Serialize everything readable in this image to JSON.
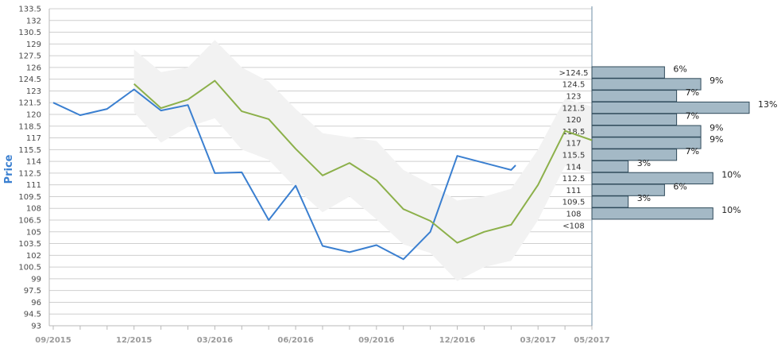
{
  "chart_data": {
    "type": "line",
    "title": "",
    "xlabel": "",
    "ylabel": "Price",
    "ylim": [
      93,
      133.5
    ],
    "y_ticks": [
      93,
      94.5,
      96,
      97.5,
      99,
      100.5,
      102,
      103.5,
      105,
      106.5,
      108,
      109.5,
      111,
      112.5,
      114,
      115.5,
      117,
      118.5,
      120,
      121.5,
      123,
      124.5,
      126,
      127.5,
      129,
      130.5,
      132,
      133.5
    ],
    "y_tick_labels": [
      "93",
      "94.5",
      "96",
      "97.5",
      "99",
      "100.5",
      "102",
      "103.5",
      "105",
      "106.5",
      "108",
      "109.5",
      "111",
      "112.5",
      "114",
      "115.5",
      "117",
      "118.5",
      "120",
      "121.5",
      "123",
      "124.5",
      "126",
      "127.5",
      "129",
      "130.5",
      "132",
      "133.5"
    ],
    "x_month_range": [
      "2015-09",
      "2017-05"
    ],
    "x_tick_labels": [
      {
        "label": "09/2015",
        "month": "2015-09"
      },
      {
        "label": "12/2015",
        "month": "2015-12"
      },
      {
        "label": "03/2016",
        "month": "2016-03"
      },
      {
        "label": "06/2016",
        "month": "2016-06"
      },
      {
        "label": "09/2016",
        "month": "2016-09"
      },
      {
        "label": "12/2016",
        "month": "2016-12"
      },
      {
        "label": "03/2017",
        "month": "2017-03"
      },
      {
        "label": "05/2017",
        "month": "2017-05"
      }
    ],
    "grid": true,
    "series": [
      {
        "color": "#3a7fd0",
        "points": [
          [
            "2015-09",
            121.5
          ],
          [
            "2015-10",
            119.9
          ],
          [
            "2015-11",
            120.7
          ],
          [
            "2015-12",
            123.2
          ],
          [
            "2016-01",
            120.5
          ],
          [
            "2016-02",
            121.2
          ],
          [
            "2016-03",
            112.5
          ],
          [
            "2016-04",
            112.6
          ],
          [
            "2016-05",
            106.5
          ],
          [
            "2016-06",
            110.9
          ],
          [
            "2016-07",
            103.2
          ],
          [
            "2016-08",
            102.4
          ],
          [
            "2016-09",
            103.3
          ],
          [
            "2016-10",
            101.5
          ],
          [
            "2016-11",
            105.0
          ],
          [
            "2016-12",
            114.7
          ],
          [
            "2017-02",
            112.9
          ],
          [
            "2017-02-05",
            113.5
          ]
        ]
      },
      {
        "color": "#8cb04a",
        "points": [
          [
            "2015-12",
            123.9
          ],
          [
            "2016-01",
            120.8
          ],
          [
            "2016-02",
            121.9
          ],
          [
            "2016-03",
            124.3
          ],
          [
            "2016-04",
            120.4
          ],
          [
            "2016-05",
            119.4
          ],
          [
            "2016-06",
            115.6
          ],
          [
            "2016-07",
            112.2
          ],
          [
            "2016-08",
            113.8
          ],
          [
            "2016-09",
            111.6
          ],
          [
            "2016-10",
            107.9
          ],
          [
            "2016-11",
            106.4
          ],
          [
            "2016-12",
            103.6
          ],
          [
            "2017-01",
            105.0
          ],
          [
            "2017-02",
            105.9
          ],
          [
            "2017-03",
            111.0
          ],
          [
            "2017-04",
            117.9
          ],
          [
            "2017-05",
            116.7
          ]
        ]
      }
    ],
    "band": {
      "color": "#f2f2f2",
      "upper": [
        [
          "2015-12",
          128.3
        ],
        [
          "2016-01",
          125.4
        ],
        [
          "2016-02",
          126.0
        ],
        [
          "2016-03",
          129.5
        ],
        [
          "2016-04",
          126.0
        ],
        [
          "2016-05",
          124.2
        ],
        [
          "2016-06",
          120.7
        ],
        [
          "2016-07",
          117.6
        ],
        [
          "2016-08",
          117.1
        ],
        [
          "2016-09",
          116.6
        ],
        [
          "2016-10",
          112.9
        ],
        [
          "2016-11",
          111.1
        ],
        [
          "2016-12",
          109.0
        ],
        [
          "2017-01",
          109.5
        ],
        [
          "2017-02",
          110.5
        ],
        [
          "2017-03",
          115.5
        ],
        [
          "2017-04",
          122.0
        ],
        [
          "2017-05",
          121.0
        ]
      ],
      "lower": [
        [
          "2015-12",
          120.3
        ],
        [
          "2016-01",
          116.4
        ],
        [
          "2016-02",
          118.4
        ],
        [
          "2016-03",
          119.5
        ],
        [
          "2016-04",
          115.5
        ],
        [
          "2016-05",
          114.2
        ],
        [
          "2016-06",
          110.6
        ],
        [
          "2016-07",
          107.5
        ],
        [
          "2016-08",
          109.5
        ],
        [
          "2016-09",
          106.6
        ],
        [
          "2016-10",
          103.4
        ],
        [
          "2016-11",
          102.3
        ],
        [
          "2016-12",
          98.7
        ],
        [
          "2017-01",
          100.5
        ],
        [
          "2017-02",
          101.3
        ],
        [
          "2017-03",
          106.5
        ],
        [
          "2017-04",
          113.4
        ],
        [
          "2017-05",
          112.6
        ]
      ]
    },
    "distribution": {
      "bar_color": "#a4b9c6",
      "bar_border": "#2f4a5a",
      "max_percent": 13,
      "bins": [
        {
          "label": ">124.5",
          "percent": 6,
          "percent_label": "6%"
        },
        {
          "label": "124.5",
          "percent": 9,
          "percent_label": "9%"
        },
        {
          "label": "123",
          "percent": 7,
          "percent_label": "7%"
        },
        {
          "label": "121.5",
          "percent": 13,
          "percent_label": "13%"
        },
        {
          "label": "120",
          "percent": 7,
          "percent_label": "7%"
        },
        {
          "label": "118.5",
          "percent": 9,
          "percent_label": "9%"
        },
        {
          "label": "117",
          "percent": 9,
          "percent_label": "9%"
        },
        {
          "label": "115.5",
          "percent": 7,
          "percent_label": "7%"
        },
        {
          "label": "114",
          "percent": 3,
          "percent_label": "3%"
        },
        {
          "label": "112.5",
          "percent": 10,
          "percent_label": "10%"
        },
        {
          "label": "111",
          "percent": 6,
          "percent_label": "6%"
        },
        {
          "label": "109.5",
          "percent": 3,
          "percent_label": "3%"
        },
        {
          "label": "108",
          "percent": 10,
          "percent_label": "10%"
        },
        {
          "label": "<108",
          "percent": null,
          "percent_label": ""
        }
      ]
    }
  }
}
